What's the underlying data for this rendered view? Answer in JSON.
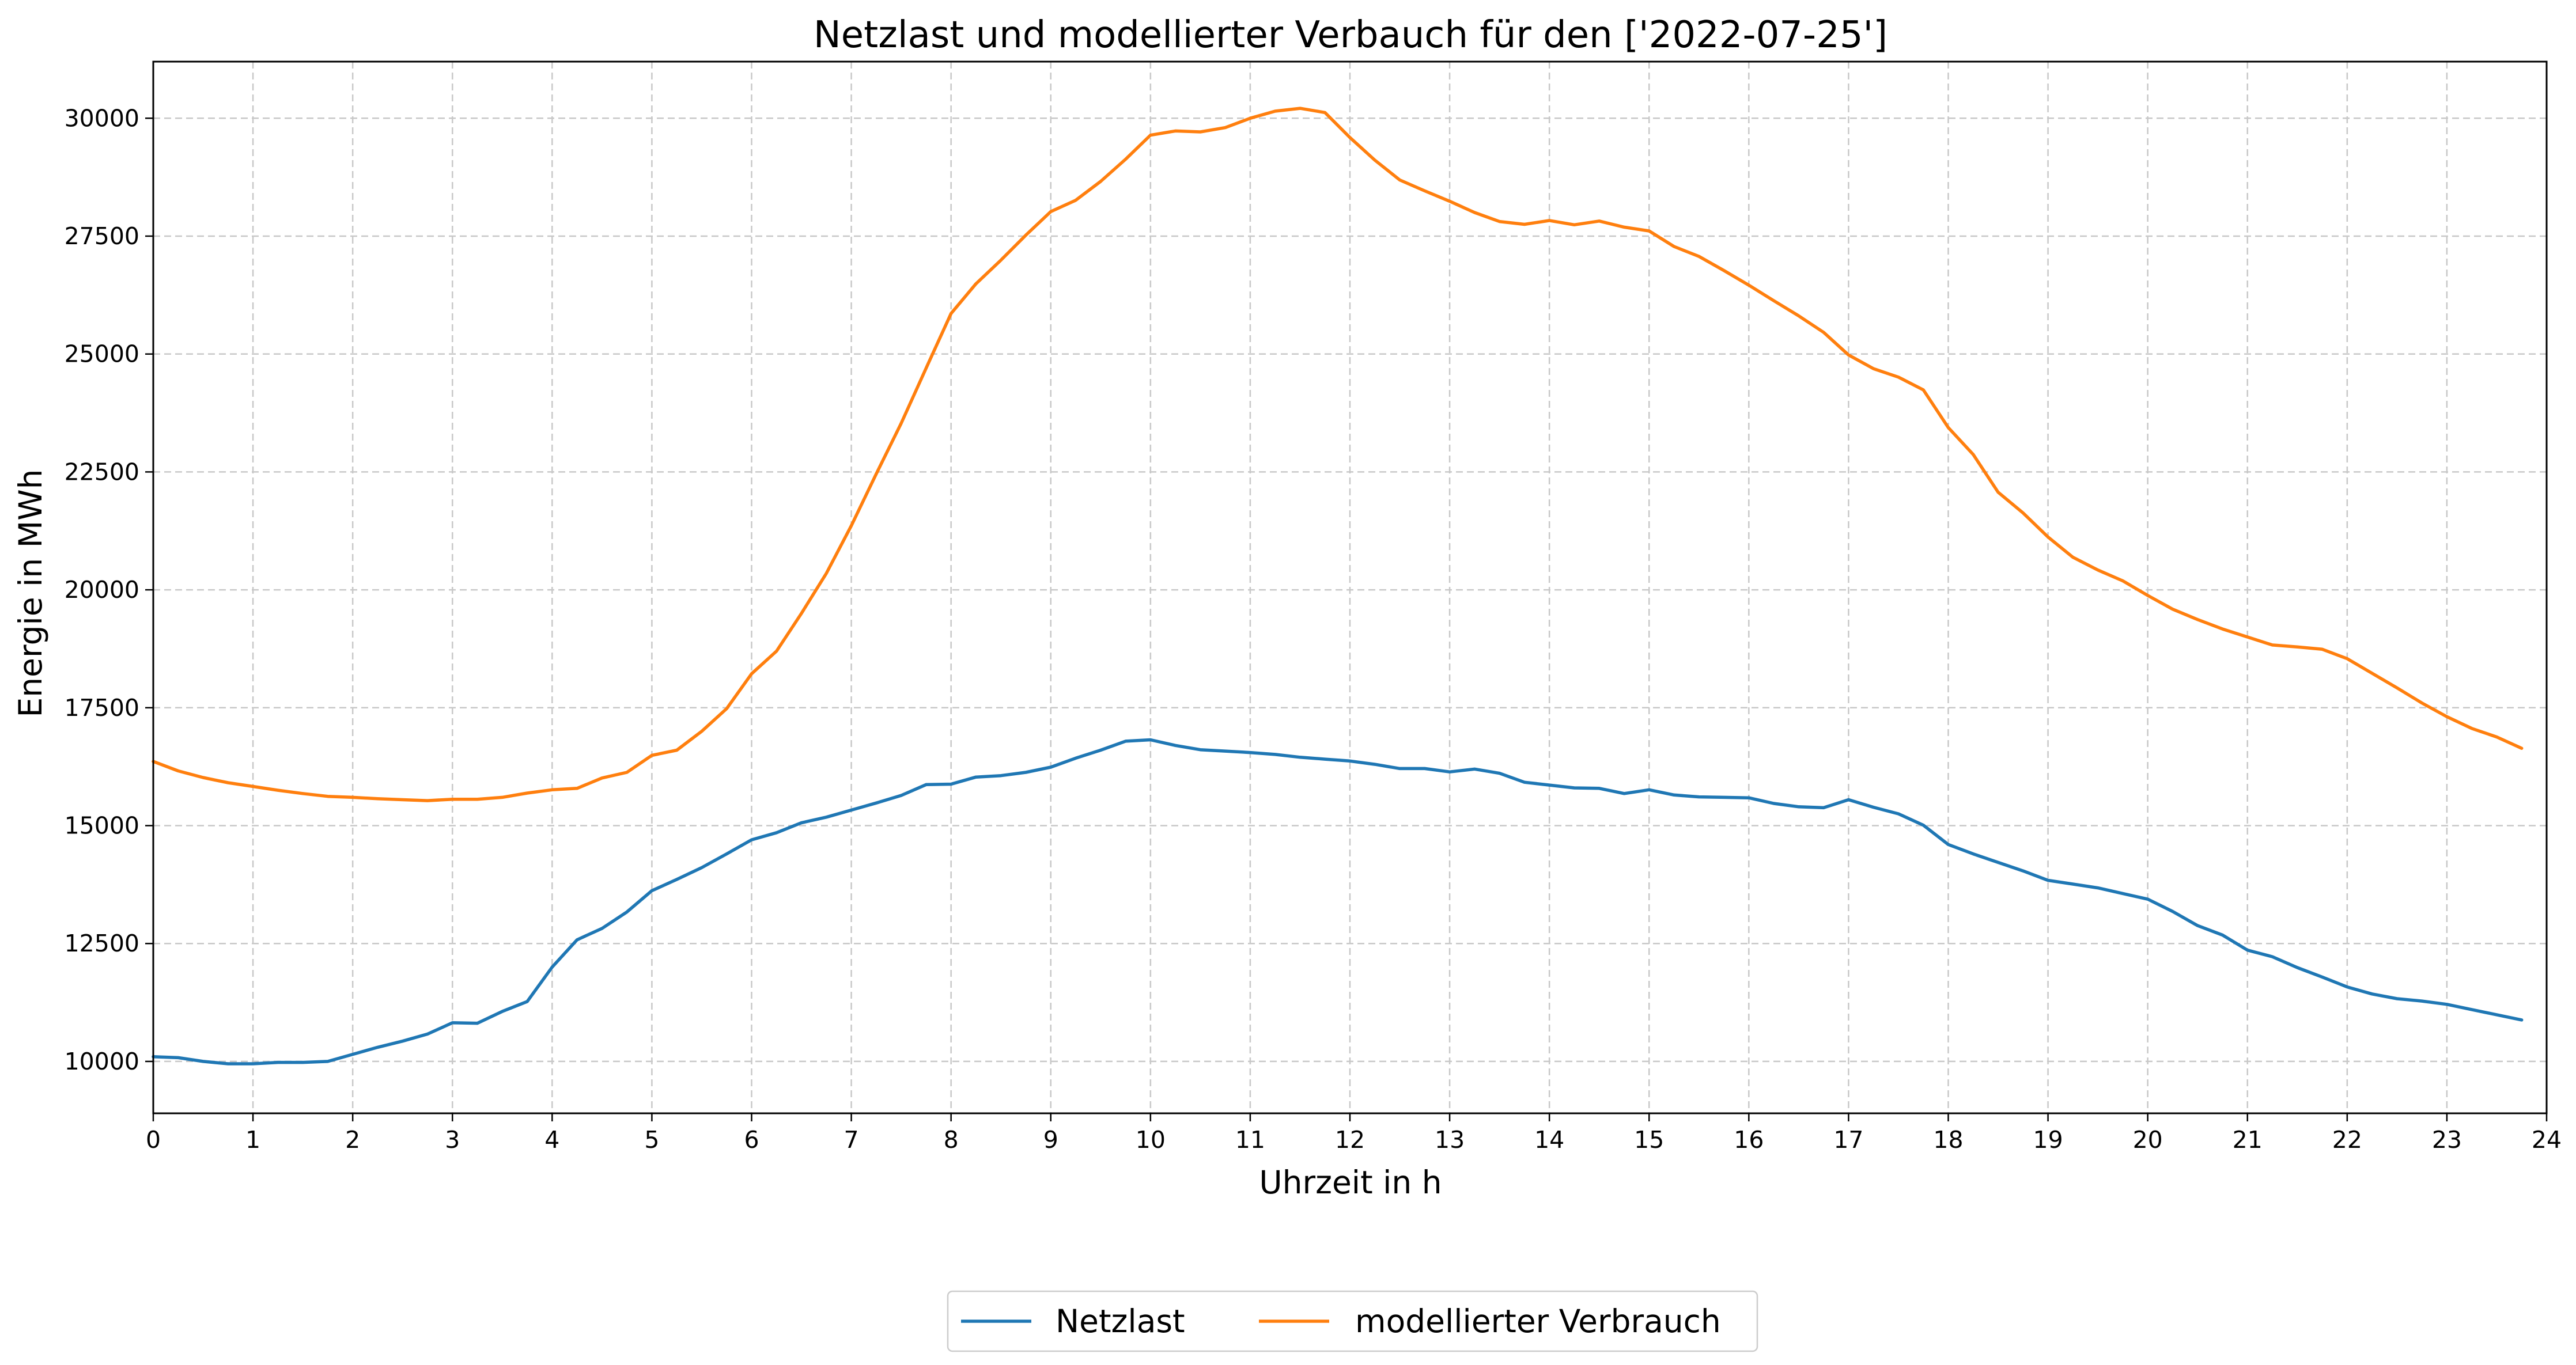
{
  "chart_data": {
    "type": "line",
    "title": "Netzlast und modellierter Verbauch für den ['2022-07-25']",
    "xlabel": "Uhrzeit in h",
    "ylabel": "Energie in MWh",
    "xlim": [
      0,
      24
    ],
    "ylim": [
      8900,
      31200
    ],
    "x_ticks": [
      0,
      1,
      2,
      3,
      4,
      5,
      6,
      7,
      8,
      9,
      10,
      11,
      12,
      13,
      14,
      15,
      16,
      17,
      18,
      19,
      20,
      21,
      22,
      23,
      24
    ],
    "y_ticks": [
      10000,
      12500,
      15000,
      17500,
      20000,
      22500,
      25000,
      27500,
      30000
    ],
    "grid": true,
    "grid_style": "dashed",
    "legend_position": "bottom-center",
    "x_step": 0.25,
    "series": [
      {
        "name": "Netzlast",
        "color": "#1f77b4",
        "values": [
          10100,
          10080,
          10000,
          9950,
          9950,
          9980,
          9980,
          10000,
          10150,
          10300,
          10430,
          10580,
          10820,
          10810,
          11060,
          11270,
          12000,
          12580,
          12820,
          13170,
          13620,
          13860,
          14110,
          14400,
          14700,
          14850,
          15060,
          15180,
          15330,
          15480,
          15640,
          15870,
          15880,
          16030,
          16060,
          16130,
          16240,
          16430,
          16600,
          16790,
          16820,
          16700,
          16610,
          16580,
          16550,
          16510,
          16450,
          16410,
          16370,
          16300,
          16210,
          16210,
          16140,
          16200,
          16110,
          15920,
          15860,
          15800,
          15790,
          15680,
          15760,
          15650,
          15610,
          15600,
          15590,
          15470,
          15400,
          15380,
          15550,
          15390,
          15250,
          15010,
          14600,
          14400,
          14220,
          14040,
          13840,
          13760,
          13680,
          13560,
          13440,
          13180,
          12880,
          12680,
          12360,
          12220,
          11990,
          11790,
          11580,
          11430,
          11330,
          11280,
          11210,
          11100,
          10990,
          10880
        ]
      },
      {
        "name": "modellierter Verbrauch",
        "color": "#ff7f0e",
        "values": [
          16360,
          16160,
          16020,
          15910,
          15830,
          15750,
          15680,
          15620,
          15600,
          15570,
          15550,
          15530,
          15560,
          15560,
          15600,
          15690,
          15760,
          15790,
          16010,
          16130,
          16490,
          16600,
          17000,
          17480,
          18220,
          18700,
          19500,
          20350,
          21360,
          22460,
          23530,
          24700,
          25860,
          26490,
          26990,
          27520,
          28020,
          28260,
          28660,
          29130,
          29640,
          29730,
          29710,
          29800,
          30000,
          30150,
          30210,
          30120,
          29590,
          29110,
          28690,
          28460,
          28240,
          28000,
          27810,
          27750,
          27830,
          27740,
          27820,
          27690,
          27610,
          27280,
          27070,
          26770,
          26460,
          26130,
          25810,
          25460,
          24980,
          24690,
          24510,
          24240,
          23440,
          22870,
          22070,
          21630,
          21120,
          20690,
          20420,
          20190,
          19880,
          19590,
          19370,
          19170,
          19000,
          18830,
          18790,
          18740,
          18540,
          18230,
          17920,
          17600,
          17310,
          17060,
          16880,
          16640
        ]
      }
    ]
  }
}
